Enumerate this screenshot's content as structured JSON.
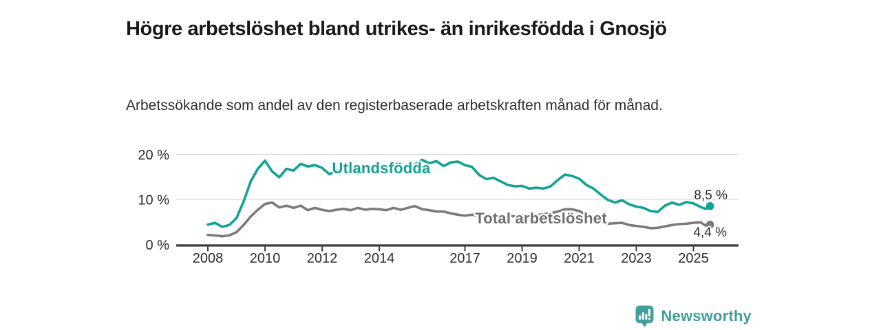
{
  "header": {
    "title": "Högre arbetslöshet bland utrikes- än inrikesfödda i Gnosjö",
    "subtitle": "Arbetssökande som andel av den registerbaserade arbetskraften månad för månad."
  },
  "chart_data": {
    "type": "line",
    "title": "Högre arbetslöshet bland utrikes- än inrikesfödda i Gnosjö",
    "subtitle": "Arbetssökande som andel av den registerbaserade arbetskraften månad för månad.",
    "xlabel": "",
    "ylabel": "",
    "ylim": [
      0,
      21.5
    ],
    "xlim": [
      2007.5,
      2026
    ],
    "grid": "horizontal",
    "legend_position": "inline-labels",
    "y_ticks": [
      {
        "value": 0,
        "label": "0 %"
      },
      {
        "value": 10,
        "label": "10 %"
      },
      {
        "value": 20,
        "label": "20 %"
      }
    ],
    "x_ticks": [
      {
        "value": 2008,
        "label": "2008"
      },
      {
        "value": 2010,
        "label": "2010"
      },
      {
        "value": 2012,
        "label": "2012"
      },
      {
        "value": 2014,
        "label": "2014"
      },
      {
        "value": 2017,
        "label": "2017"
      },
      {
        "value": 2019,
        "label": "2019"
      },
      {
        "value": 2021,
        "label": "2021"
      },
      {
        "value": 2023,
        "label": "2023"
      },
      {
        "value": 2025,
        "label": "2025"
      }
    ],
    "x": [
      2008,
      2008.25,
      2008.5,
      2008.75,
      2009,
      2009.25,
      2009.5,
      2009.75,
      2010,
      2010.25,
      2010.5,
      2010.75,
      2011,
      2011.25,
      2011.5,
      2011.75,
      2012,
      2012.25,
      2012.5,
      2012.75,
      2013,
      2013.25,
      2013.5,
      2013.75,
      2014,
      2014.25,
      2014.5,
      2014.75,
      2015,
      2015.25,
      2015.5,
      2015.75,
      2016,
      2016.25,
      2016.5,
      2016.75,
      2017,
      2017.25,
      2017.5,
      2017.75,
      2018,
      2018.25,
      2018.5,
      2018.75,
      2019,
      2019.25,
      2019.5,
      2019.75,
      2020,
      2020.25,
      2020.5,
      2020.75,
      2021,
      2021.25,
      2021.5,
      2021.75,
      2022,
      2022.25,
      2022.5,
      2022.75,
      2023,
      2023.25,
      2023.5,
      2023.75,
      2024,
      2024.25,
      2024.5,
      2024.75,
      2025,
      2025.25,
      2025.42,
      2025.58
    ],
    "series": [
      {
        "name": "Utlandsfödda",
        "color": "#10a394",
        "end_label": "8,5 %",
        "values": [
          4.4,
          4.8,
          3.9,
          4.3,
          5.8,
          9.5,
          14.0,
          16.8,
          18.6,
          16.2,
          14.9,
          16.8,
          16.4,
          17.9,
          17.3,
          17.6,
          17.0,
          15.6,
          16.3,
          16.8,
          16.2,
          15.7,
          16.4,
          16.7,
          16.3,
          15.9,
          16.6,
          16.2,
          16.9,
          17.8,
          18.8,
          18.0,
          18.5,
          17.4,
          18.2,
          18.4,
          17.6,
          17.2,
          15.4,
          14.5,
          14.8,
          14.0,
          13.2,
          12.9,
          13.0,
          12.4,
          12.6,
          12.4,
          12.9,
          14.3,
          15.5,
          15.2,
          14.6,
          13.2,
          12.4,
          11.1,
          9.9,
          9.3,
          9.8,
          8.9,
          8.4,
          8.1,
          7.4,
          7.2,
          8.6,
          9.3,
          8.8,
          9.4,
          9.1,
          8.3,
          7.9,
          8.5
        ]
      },
      {
        "name": "Total arbetslöshet",
        "color": "#7b7b7b",
        "end_label": "4,4 %",
        "values": [
          2.1,
          2.0,
          1.8,
          2.0,
          2.7,
          4.3,
          6.2,
          7.7,
          9.0,
          9.3,
          8.2,
          8.6,
          8.1,
          8.6,
          7.6,
          8.1,
          7.7,
          7.4,
          7.7,
          7.9,
          7.6,
          8.1,
          7.7,
          7.9,
          7.8,
          7.6,
          8.1,
          7.7,
          8.1,
          8.5,
          7.8,
          7.6,
          7.3,
          7.3,
          6.9,
          6.6,
          6.4,
          6.6,
          6.3,
          6.5,
          6.3,
          6.1,
          6.4,
          6.2,
          6.5,
          6.3,
          6.5,
          6.7,
          6.9,
          7.3,
          7.8,
          7.8,
          7.4,
          6.6,
          5.8,
          5.1,
          4.6,
          4.7,
          4.8,
          4.3,
          4.1,
          3.9,
          3.6,
          3.7,
          4.0,
          4.3,
          4.5,
          4.6,
          4.8,
          4.9,
          4.2,
          4.4
        ]
      }
    ],
    "colors": {
      "axis": "#3b3b3b",
      "grid": "#d9d9d9",
      "tick_text": "#2c2c2c",
      "value_label_text": "#2c2c2c",
      "series_label_utlandsfodda": "#10a394",
      "series_label_total": "#6f6f6f"
    }
  },
  "footer": {
    "brand": "Newsworthy",
    "icon": "newsworthy-chart-bubble-icon",
    "brand_color": "#3f9f9c"
  }
}
